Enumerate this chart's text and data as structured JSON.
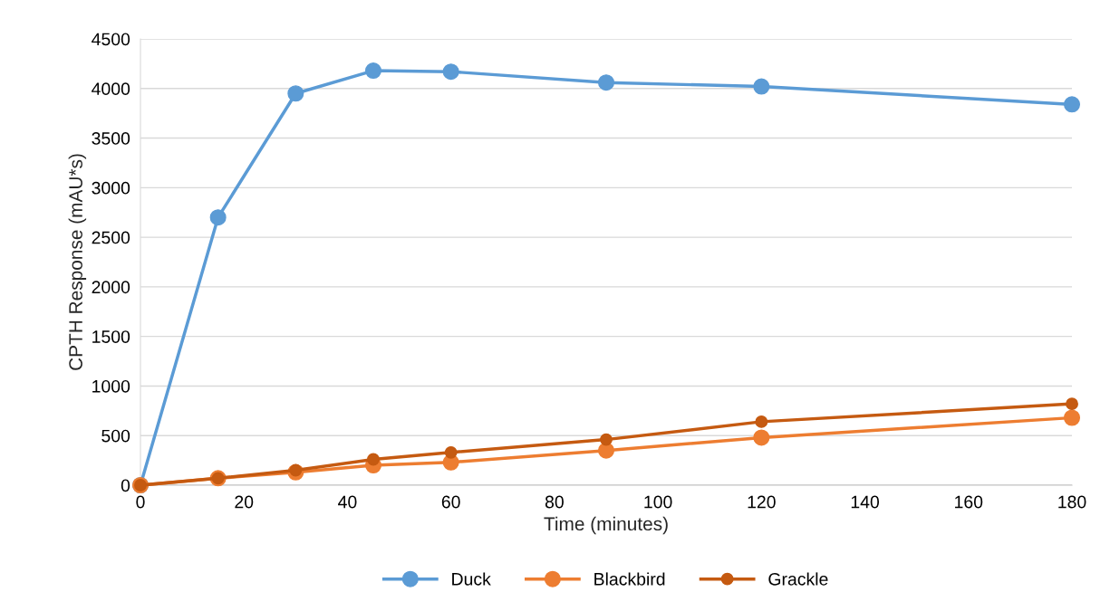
{
  "chart_data": {
    "type": "line",
    "xlabel": "Time (minutes)",
    "ylabel": "CPTH Response (mAU*s)",
    "x": [
      0,
      15,
      30,
      45,
      60,
      90,
      120,
      180
    ],
    "series": [
      {
        "name": "Duck",
        "color": "#5b9bd5",
        "values": [
          0,
          2700,
          3950,
          4180,
          4170,
          4060,
          4020,
          3840
        ]
      },
      {
        "name": "Blackbird",
        "color": "#ed7d31",
        "values": [
          0,
          70,
          130,
          200,
          230,
          350,
          480,
          680
        ]
      },
      {
        "name": "Grackle",
        "color": "#c55a11",
        "values": [
          0,
          70,
          150,
          260,
          330,
          460,
          640,
          820
        ]
      }
    ],
    "xlim": [
      0,
      180
    ],
    "xticks": [
      0,
      20,
      40,
      60,
      80,
      100,
      120,
      140,
      160,
      180
    ],
    "ylim": [
      0,
      4500
    ],
    "yticks": [
      0,
      500,
      1000,
      1500,
      2000,
      2500,
      3000,
      3500,
      4000,
      4500
    ],
    "grid": "y",
    "legend": "bottom",
    "marker": "circle",
    "line_style": "solid"
  }
}
